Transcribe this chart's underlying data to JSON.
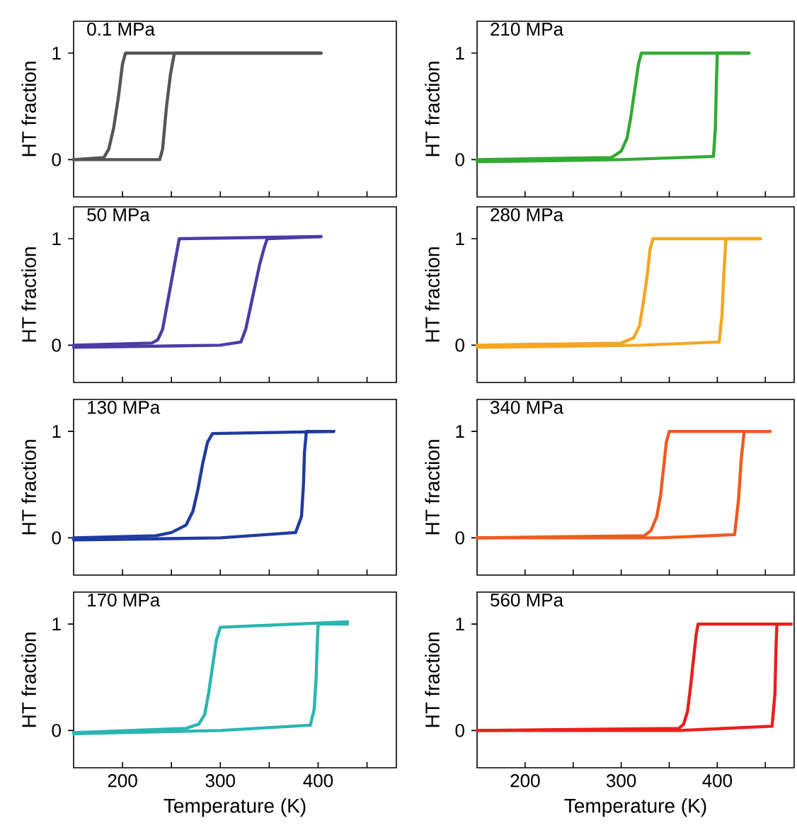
{
  "chart_data": [
    {
      "type": "line",
      "title": "0.1 MPa",
      "ylabel": "HT fraction",
      "xlim": [
        150,
        480
      ],
      "ylim": [
        -0.35,
        1.3
      ],
      "xticks": [
        200,
        {
          "value": 250,
          "label": null
        },
        300,
        {
          "value": 350,
          "label": null
        },
        400,
        {
          "value": 450,
          "label": null
        }
      ],
      "yticks": [
        0,
        1
      ],
      "tick_labels": "y",
      "series": [
        {
          "color": "#555555",
          "x": [
            150,
            238,
            241,
            245,
            249,
            253,
            403
          ],
          "values": [
            0,
            0,
            0.1,
            0.5,
            0.8,
            1,
            1
          ]
        },
        {
          "color": "#555555",
          "x": [
            403,
            203,
            200,
            196,
            191,
            186,
            181,
            150
          ],
          "values": [
            1,
            1,
            0.9,
            0.6,
            0.3,
            0.1,
            0.02,
            0
          ]
        }
      ]
    },
    {
      "type": "line",
      "title": "50 MPa",
      "ylabel": "HT fraction",
      "xlim": [
        150,
        480
      ],
      "ylim": [
        -0.35,
        1.3
      ],
      "xticks": [
        200,
        {
          "value": 250,
          "label": null
        },
        300,
        {
          "value": 350,
          "label": null
        },
        400,
        {
          "value": 450,
          "label": null
        }
      ],
      "yticks": [
        0,
        1
      ],
      "tick_labels": "y",
      "series": [
        {
          "color": "#4b3ca8",
          "x": [
            150,
            300,
            321,
            326,
            333,
            340,
            345,
            348,
            403
          ],
          "values": [
            -0.02,
            0,
            0.03,
            0.15,
            0.45,
            0.75,
            0.92,
            1,
            1.02
          ]
        },
        {
          "color": "#4b3ca8",
          "x": [
            403,
            258,
            257,
            252,
            246,
            241,
            236,
            230,
            150
          ],
          "values": [
            1.02,
            1,
            0.95,
            0.7,
            0.4,
            0.15,
            0.05,
            0.02,
            0
          ]
        }
      ]
    },
    {
      "type": "line",
      "title": "130 MPa",
      "ylabel": "HT fraction",
      "xlim": [
        150,
        480
      ],
      "ylim": [
        -0.35,
        1.3
      ],
      "xticks": [
        200,
        {
          "value": 250,
          "label": null
        },
        300,
        {
          "value": 350,
          "label": null
        },
        400,
        {
          "value": 450,
          "label": null
        }
      ],
      "yticks": [
        0,
        1
      ],
      "tick_labels": "y",
      "series": [
        {
          "color": "#1f3aa0",
          "x": [
            150,
            300,
            377,
            383,
            385,
            386,
            388,
            416
          ],
          "values": [
            -0.02,
            0,
            0.05,
            0.2,
            0.5,
            0.8,
            1,
            1
          ]
        },
        {
          "color": "#1f3aa0",
          "x": [
            416,
            292,
            287,
            282,
            277,
            272,
            265,
            250,
            234,
            150
          ],
          "values": [
            1,
            0.98,
            0.9,
            0.7,
            0.45,
            0.25,
            0.12,
            0.05,
            0.02,
            0
          ]
        }
      ]
    },
    {
      "type": "line",
      "title": "170 MPa",
      "ylabel": "HT fraction",
      "xlabel": "Temperature (K)",
      "xlim": [
        150,
        480
      ],
      "ylim": [
        -0.35,
        1.3
      ],
      "xticks": [
        200,
        {
          "value": 250,
          "label": null
        },
        300,
        {
          "value": 350,
          "label": null
        },
        400,
        {
          "value": 450,
          "label": null
        }
      ],
      "yticks": [
        0,
        1
      ],
      "series": [
        {
          "color": "#2ab5b0",
          "x": [
            150,
            300,
            392,
            396,
            398,
            399,
            400,
            430
          ],
          "values": [
            -0.03,
            0,
            0.05,
            0.2,
            0.5,
            0.8,
            1,
            1
          ]
        },
        {
          "color": "#2ab5b0",
          "x": [
            430,
            300,
            296,
            292,
            288,
            284,
            278,
            265,
            150
          ],
          "values": [
            1.02,
            0.97,
            0.85,
            0.6,
            0.35,
            0.15,
            0.06,
            0.02,
            -0.02
          ]
        }
      ]
    },
    {
      "type": "line",
      "title": "210 MPa",
      "ylabel": "HT fraction",
      "xlim": [
        150,
        480
      ],
      "ylim": [
        -0.35,
        1.3
      ],
      "xticks": [
        200,
        {
          "value": 250,
          "label": null
        },
        300,
        {
          "value": 350,
          "label": null
        },
        400,
        {
          "value": 450,
          "label": null
        }
      ],
      "yticks": [
        0,
        1
      ],
      "tick_labels": "y",
      "series": [
        {
          "color": "#33aa33",
          "x": [
            150,
            300,
            396,
            398,
            399,
            400,
            433
          ],
          "values": [
            -0.02,
            0,
            0.03,
            0.3,
            0.7,
            1,
            1
          ]
        },
        {
          "color": "#33aa33",
          "x": [
            433,
            321,
            318,
            314,
            310,
            306,
            300,
            290,
            150
          ],
          "values": [
            1,
            1,
            0.9,
            0.65,
            0.4,
            0.2,
            0.08,
            0.02,
            0
          ]
        }
      ]
    },
    {
      "type": "line",
      "title": "280 MPa",
      "ylabel": "HT fraction",
      "xlim": [
        150,
        480
      ],
      "ylim": [
        -0.35,
        1.3
      ],
      "xticks": [
        200,
        {
          "value": 250,
          "label": null
        },
        300,
        {
          "value": 350,
          "label": null
        },
        400,
        {
          "value": 450,
          "label": null
        }
      ],
      "yticks": [
        0,
        1
      ],
      "tick_labels": "y",
      "series": [
        {
          "color": "#f5a623",
          "x": [
            150,
            320,
            402,
            405,
            407,
            409,
            445
          ],
          "values": [
            -0.02,
            0,
            0.03,
            0.3,
            0.7,
            1,
            1
          ]
        },
        {
          "color": "#f5a623",
          "x": [
            445,
            333,
            330,
            327,
            323,
            319,
            313,
            300,
            150
          ],
          "values": [
            1,
            1,
            0.9,
            0.65,
            0.4,
            0.18,
            0.07,
            0.02,
            0
          ]
        }
      ]
    },
    {
      "type": "line",
      "title": "340 MPa",
      "ylabel": "HT fraction",
      "xlim": [
        150,
        480
      ],
      "ylim": [
        -0.35,
        1.3
      ],
      "xticks": [
        200,
        {
          "value": 250,
          "label": null
        },
        300,
        {
          "value": 350,
          "label": null
        },
        400,
        {
          "value": 450,
          "label": null
        }
      ],
      "yticks": [
        0,
        1
      ],
      "tick_labels": "y",
      "series": [
        {
          "color": "#f05a1e",
          "x": [
            150,
            340,
            418,
            422,
            425,
            428,
            455
          ],
          "values": [
            0,
            0,
            0.03,
            0.35,
            0.75,
            1,
            1
          ]
        },
        {
          "color": "#f05a1e",
          "x": [
            455,
            350,
            347,
            344,
            341,
            337,
            331,
            324,
            150
          ],
          "values": [
            1,
            1,
            0.9,
            0.65,
            0.4,
            0.2,
            0.07,
            0.02,
            0
          ]
        }
      ]
    },
    {
      "type": "line",
      "title": "560 MPa",
      "ylabel": "HT fraction",
      "xlabel": "Temperature (K)",
      "xlim": [
        150,
        480
      ],
      "ylim": [
        -0.35,
        1.3
      ],
      "xticks": [
        200,
        {
          "value": 250,
          "label": null
        },
        300,
        {
          "value": 350,
          "label": null
        },
        400,
        {
          "value": 450,
          "label": null
        }
      ],
      "yticks": [
        0,
        1
      ],
      "series": [
        {
          "color": "#e8201c",
          "x": [
            150,
            360,
            457,
            460,
            461,
            462,
            477
          ],
          "values": [
            0,
            0,
            0.04,
            0.35,
            0.75,
            1,
            1
          ]
        },
        {
          "color": "#e8201c",
          "x": [
            477,
            380,
            378,
            375,
            372,
            369,
            365,
            360,
            150
          ],
          "values": [
            1,
            1,
            0.9,
            0.65,
            0.4,
            0.18,
            0.06,
            0.02,
            0
          ]
        }
      ]
    }
  ]
}
